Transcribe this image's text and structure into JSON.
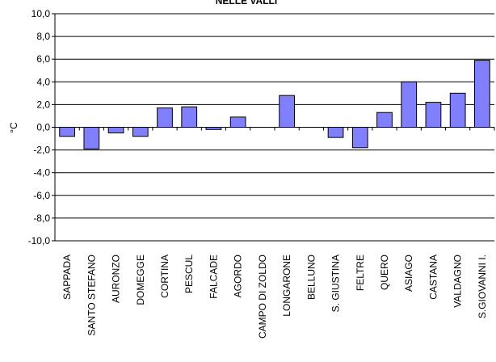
{
  "chart_data": {
    "type": "bar",
    "title": "NELLE VALLI",
    "ylabel": "°C",
    "xlabel": "",
    "ylim": [
      -10,
      10
    ],
    "yticks": [
      "-10,0",
      "-8,0",
      "-6,0",
      "-4,0",
      "-2,0",
      "0,0",
      "2,0",
      "4,0",
      "6,0",
      "8,0",
      "10,0"
    ],
    "grid": true,
    "bar_color": "#8080ff",
    "categories": [
      "SAPPADA",
      "SANTO STEFANO",
      "AURONZO",
      "DOMEGGE",
      "CORTINA",
      "PESCUL",
      "FALCADE",
      "AGORDO",
      "CAMPO DI ZOLDO",
      "LONGARONE",
      "BELLUNO",
      "S. GIUSTINA",
      "FELTRE",
      "QUERO",
      "ASIAGO",
      "CASTANA",
      "VALDAGNO",
      "S.GIOVANNI I."
    ],
    "values": [
      -0.8,
      -1.9,
      -0.5,
      -0.8,
      1.7,
      1.8,
      -0.2,
      0.9,
      0.0,
      2.8,
      0.0,
      -0.9,
      -1.8,
      1.3,
      4.0,
      2.2,
      3.0,
      5.9
    ]
  }
}
